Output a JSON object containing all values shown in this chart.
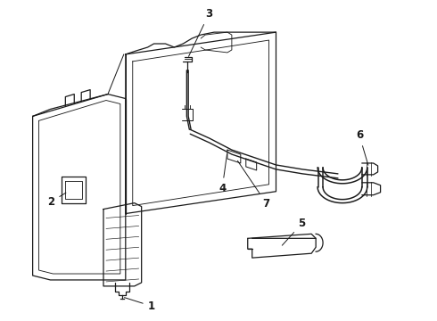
{
  "background_color": "#ffffff",
  "line_color": "#1a1a1a",
  "line_width": 0.9,
  "label_fontsize": 8.5,
  "fig_width": 4.9,
  "fig_height": 3.6,
  "dpi": 100
}
